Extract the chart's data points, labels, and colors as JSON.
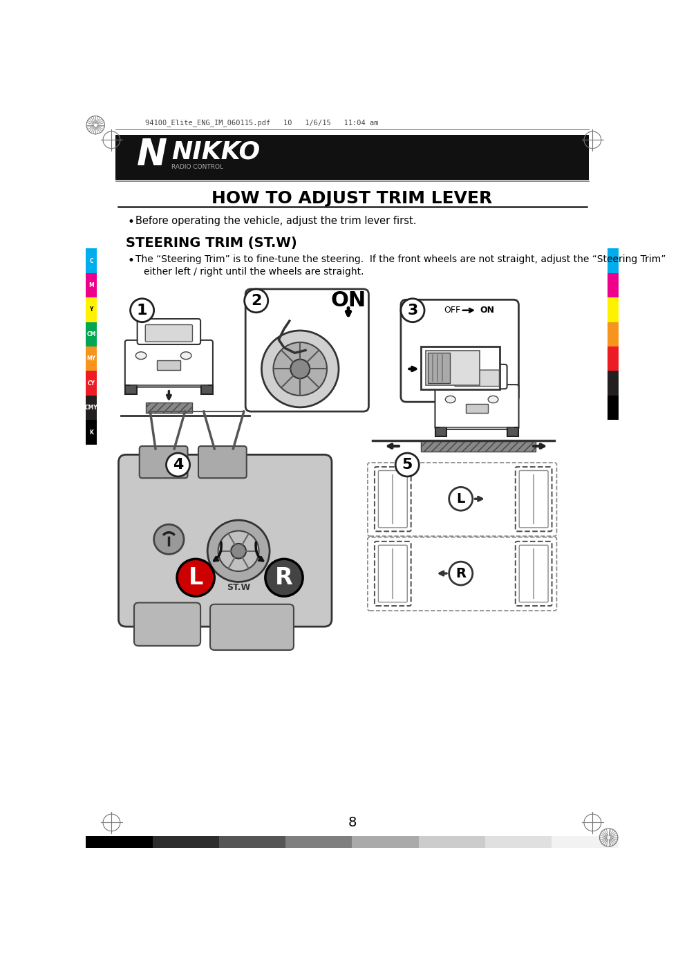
{
  "page_bg": "#ffffff",
  "header_bg": "#111111",
  "header_text_color": "#ffffff",
  "title": "HOW TO ADJUST TRIM LEVER",
  "title_fontsize": 18,
  "title_color": "#000000",
  "bullet1": "Before operating the vehicle, adjust the trim lever first.",
  "section_title": "STEERING TRIM (ST.W)",
  "section_title_fontsize": 14,
  "bullet2_line1": "The “Steering Trim” is to fine-tune the steering.  If the front wheels are not straight, adjust the “Steering Trim”",
  "bullet2_line2": "either left / right until the wheels are straight.",
  "footer_text": "8",
  "file_info": "94100_Elite_ENG_IM_060115.pdf   10   1/6/15   11:04 am",
  "left_strip_colors": [
    "#00aeef",
    "#ec008c",
    "#fff200",
    "#00a651",
    "#f7941d",
    "#ed1c24",
    "#231f20",
    "#000000"
  ],
  "left_strip_labels": [
    "C",
    "M",
    "Y",
    "CM",
    "MY",
    "CY",
    "CMY",
    "K"
  ],
  "right_strip_colors": [
    "#00aeef",
    "#ec008c",
    "#fff200",
    "#f7941d",
    "#ed1c24",
    "#231f20",
    "#000000"
  ],
  "bottom_bar_colors": [
    "#000000",
    "#2d2d2d",
    "#555555",
    "#7f7f7f",
    "#aaaaaa",
    "#cccccc",
    "#e0e0e0",
    "#f2f2f2"
  ]
}
